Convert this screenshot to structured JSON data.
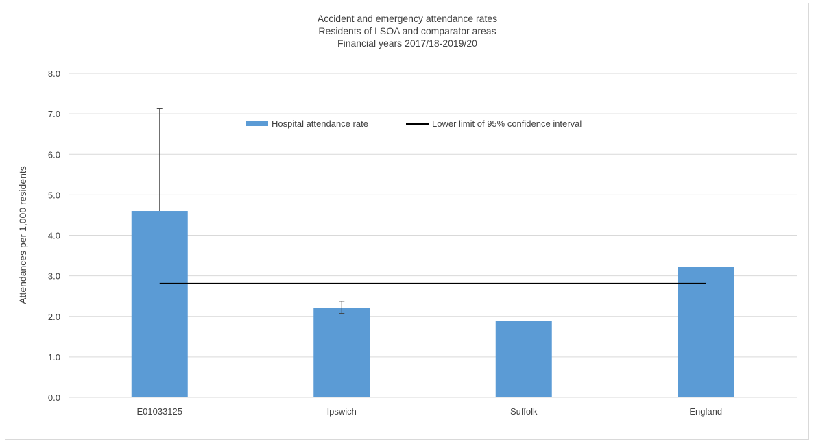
{
  "chart_data": {
    "type": "bar",
    "title": [
      "Accident and emergency attendance rates",
      "Residents of LSOA and comparator areas",
      "Financial years 2017/18-2019/20"
    ],
    "ylabel": "Attendances per 1,000 residents",
    "xlabel": "",
    "ylim": [
      0,
      8
    ],
    "yticks": [
      "0.0",
      "1.0",
      "2.0",
      "3.0",
      "4.0",
      "5.0",
      "6.0",
      "7.0",
      "8.0"
    ],
    "categories": [
      "E01033125",
      "Ipswich",
      "Suffolk",
      "England"
    ],
    "series": [
      {
        "name": "Hospital attendance rate",
        "values": [
          4.6,
          2.21,
          1.88,
          3.23
        ],
        "error_upper": [
          7.13,
          2.37,
          null,
          null
        ],
        "error_lower": [
          null,
          2.07,
          null,
          null
        ]
      },
      {
        "name": "Lower limit of 95% confidence interval",
        "type": "line",
        "values": [
          2.81,
          2.81,
          2.81,
          2.81
        ]
      }
    ],
    "grid": true,
    "legend_position": "top-center"
  },
  "colors": {
    "bar": "#5b9bd5",
    "line": "#000000",
    "grid": "#d9d9d9",
    "error": "#404040"
  }
}
